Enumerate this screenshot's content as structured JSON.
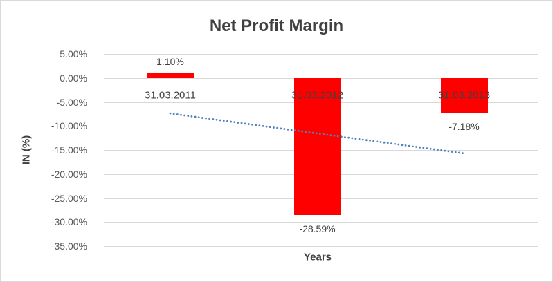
{
  "chart_data": {
    "type": "bar",
    "title": "Net Profit Margin",
    "xlabel": "Years",
    "ylabel": "IN (%)",
    "categories": [
      "31.03.2011",
      "31.03.2012",
      "31.03.2013"
    ],
    "values": [
      1.1,
      -28.59,
      -7.18
    ],
    "value_labels": [
      "1.10%",
      "-28.59%",
      "-7.18%"
    ],
    "y_axis": {
      "min": -35,
      "max": 5,
      "step": 5,
      "tick_labels": [
        "5.00%",
        "0.00%",
        "-5.00%",
        "-10.00%",
        "-15.00%",
        "-20.00%",
        "-25.00%",
        "-30.00%",
        "-35.00%"
      ],
      "tick_values": [
        5,
        0,
        -5,
        -10,
        -15,
        -20,
        -25,
        -30,
        -35
      ]
    },
    "grid": true,
    "legend": false,
    "trendline": {
      "style": "dotted-linear",
      "points": [
        {
          "category": "31.03.2011",
          "value": -7.4
        },
        {
          "category": "31.03.2013",
          "value": -15.7
        }
      ]
    },
    "colors": {
      "bar": "#ff0000",
      "trendline": "#4f81bd",
      "gridline": "#d9d9d9",
      "title_text": "#404040",
      "axis_text": "#595959",
      "label_text": "#404040",
      "frame_border": "#d9d9d9"
    }
  }
}
